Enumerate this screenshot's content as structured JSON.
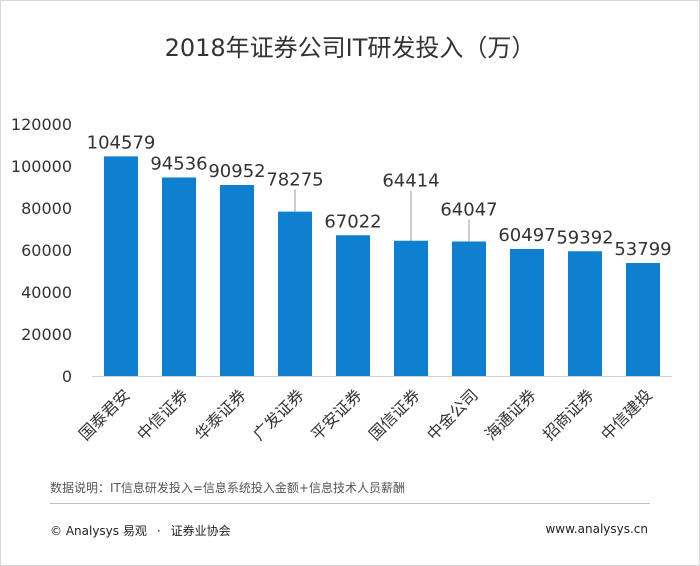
{
  "chart_data": {
    "type": "bar",
    "title": "2018年证券公司IT研发投入（万）",
    "categories": [
      "国泰君安",
      "中信证券",
      "华泰证券",
      "广发证券",
      "平安证券",
      "国信证券",
      "中金公司",
      "海通证券",
      "招商证券",
      "中信建投"
    ],
    "values": [
      104579,
      94536,
      90952,
      78275,
      67022,
      64414,
      64047,
      60497,
      59392,
      53799
    ],
    "ylim": [
      0,
      120000
    ],
    "yticks": [
      "0",
      "20000",
      "40000",
      "60000",
      "80000",
      "100000",
      "120000"
    ],
    "bar_color": "#0f7fcf",
    "grid": false,
    "legend": "none"
  },
  "note": "数据说明：IT信息研发投入=信息系统投入金额+信息技术人员薪酬",
  "footer": {
    "copyright": "© Analysys 易观",
    "dot": "·",
    "partner": "证券业协会",
    "website": "www.analysys.cn"
  }
}
